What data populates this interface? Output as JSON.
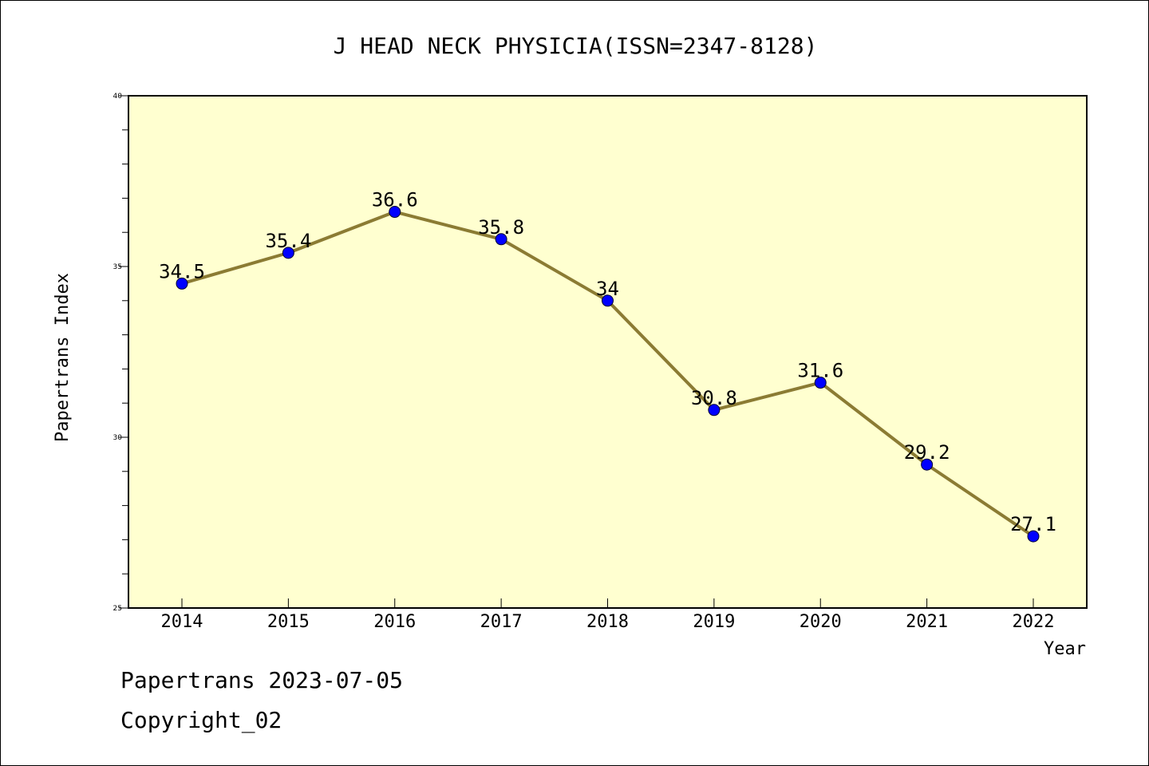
{
  "chart_data": {
    "type": "line",
    "title": "J HEAD NECK PHYSICIA(ISSN=2347-8128)",
    "xlabel": "Year",
    "ylabel": "Papertrans Index",
    "categories": [
      "2014",
      "2015",
      "2016",
      "2017",
      "2018",
      "2019",
      "2020",
      "2021",
      "2022"
    ],
    "values": [
      34.5,
      35.4,
      36.6,
      35.8,
      34,
      30.8,
      31.6,
      29.2,
      27.1
    ],
    "data_labels": [
      "34.5",
      "35.4",
      "36.6",
      "35.8",
      "34",
      "30.8",
      "31.6",
      "29.2",
      "27.1"
    ],
    "ylim": [
      25,
      40
    ],
    "y_ticks": [
      25,
      30,
      35,
      40
    ],
    "y_tick_labels": [
      "25",
      "30",
      "35",
      "40"
    ],
    "y_minor_step": 1,
    "grid": false,
    "legend": "none",
    "line_color": "#8B7B33",
    "marker_color": "#0000FF",
    "plot_background": "#FFFFD0"
  },
  "footer": {
    "line1": "Papertrans 2023-07-05",
    "line2": "Copyright_02"
  }
}
